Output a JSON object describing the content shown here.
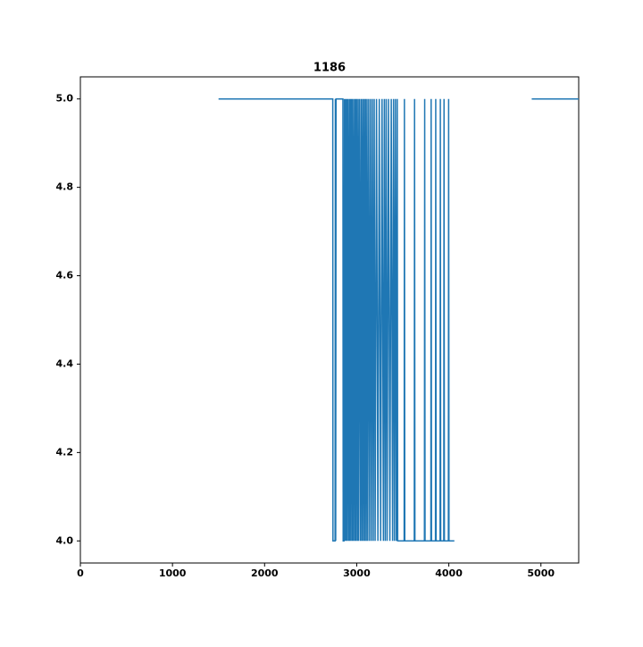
{
  "chart_data": {
    "type": "line",
    "title": "1186",
    "x": [
      1500,
      2740,
      2742,
      2765,
      2768,
      2772,
      2776,
      2780,
      2850,
      2853,
      2862,
      2866,
      2872,
      2880,
      2886,
      2894,
      2900,
      2908,
      2916,
      2924,
      2930,
      2938,
      2946,
      2952,
      2960,
      2968,
      2976,
      2984,
      2990,
      2998,
      3006,
      3014,
      3020,
      3030,
      3040,
      3048,
      3056,
      3064,
      3072,
      3080,
      3088,
      3096,
      3104,
      3112,
      3120,
      3130,
      3140,
      3150,
      3160,
      3170,
      3180,
      3190,
      3200,
      3215,
      3230,
      3245,
      3260,
      3275,
      3290,
      3300,
      3310,
      3320,
      3330,
      3345,
      3360,
      3375,
      3390,
      3400,
      3410,
      3420,
      3430,
      3440,
      3445,
      3515,
      3518,
      3522,
      3625,
      3628,
      3632,
      3735,
      3738,
      3742,
      3805,
      3808,
      3812,
      3855,
      3858,
      3862,
      3905,
      3908,
      3912,
      3945,
      3948,
      3952,
      3995,
      3998,
      4002,
      4060,
      null,
      4900,
      5410
    ],
    "series": [
      {
        "color": "#1f77b4",
        "values": [
          5,
          5,
          4,
          4,
          5,
          4,
          5,
          5,
          5,
          4,
          4,
          5,
          4,
          5,
          4,
          5,
          4,
          5,
          4,
          5,
          4,
          5,
          4,
          5,
          4,
          5,
          4,
          5,
          4,
          5,
          4,
          5,
          4,
          5,
          4,
          5,
          4,
          5,
          4,
          5,
          4,
          5,
          4,
          5,
          4,
          5,
          4,
          5,
          4,
          5,
          4,
          5,
          4,
          5,
          4,
          5,
          4,
          5,
          4,
          5,
          4,
          5,
          4,
          5,
          4,
          5,
          4,
          5,
          4,
          5,
          4,
          5,
          4,
          4,
          5,
          4,
          4,
          5,
          4,
          4,
          5,
          4,
          4,
          5,
          4,
          4,
          5,
          4,
          4,
          5,
          4,
          4,
          5,
          4,
          4,
          5,
          4,
          4,
          null,
          5,
          5
        ]
      }
    ],
    "xlim": [
      0,
      5410
    ],
    "ylim": [
      3.95,
      5.05
    ],
    "xticks": [
      0,
      1000,
      2000,
      3000,
      4000,
      5000
    ],
    "yticks": [
      {
        "value": 4,
        "label": "4.0"
      },
      4.2,
      4.4,
      4.6,
      4.8,
      {
        "value": 5,
        "label": "5.0"
      }
    ]
  }
}
